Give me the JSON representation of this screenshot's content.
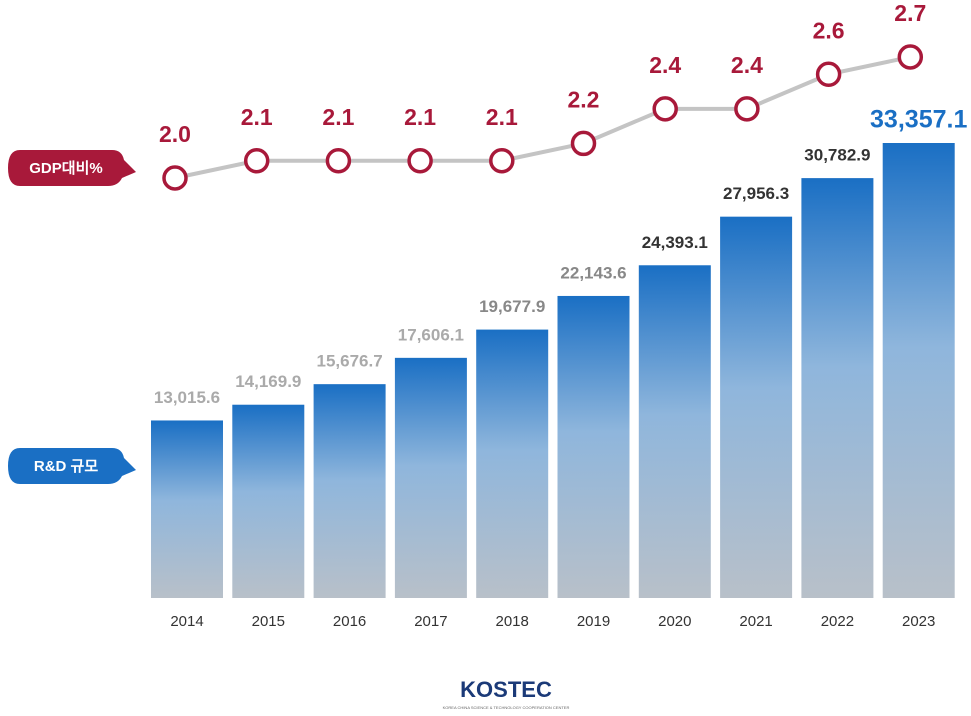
{
  "chart_data": {
    "type": "bar",
    "categories": [
      "2014",
      "2015",
      "2016",
      "2017",
      "2018",
      "2019",
      "2020",
      "2021",
      "2022",
      "2023"
    ],
    "series": [
      {
        "name": "R&D 규모",
        "type": "bar",
        "color": "#1a6fc4",
        "values": [
          13015.6,
          14169.9,
          15676.7,
          17606.1,
          19677.9,
          22143.6,
          24393.1,
          27956.3,
          30782.9,
          33357.1
        ],
        "value_labels": [
          "13,015.6",
          "14,169.9",
          "15,676.7",
          "17,606.1",
          "19,677.9",
          "22,143.6",
          "24,393.1",
          "27,956.3",
          "30,782.9",
          "33,357.1"
        ]
      },
      {
        "name": "GDP대비%",
        "type": "line",
        "axis": "y2",
        "color": "#a8193a",
        "values": [
          2.0,
          2.1,
          2.1,
          2.1,
          2.1,
          2.2,
          2.4,
          2.4,
          2.6,
          2.7
        ],
        "value_labels": [
          "2.0",
          "2.1",
          "2.1",
          "2.1",
          "2.1",
          "2.2",
          "2.4",
          "2.4",
          "2.6",
          "2.7"
        ]
      }
    ]
  },
  "logo": {
    "name": "KOSTEC",
    "subtitle": "KOREA CHINA SCIENCE & TECHNOLOGY COOPERATION CENTER"
  }
}
